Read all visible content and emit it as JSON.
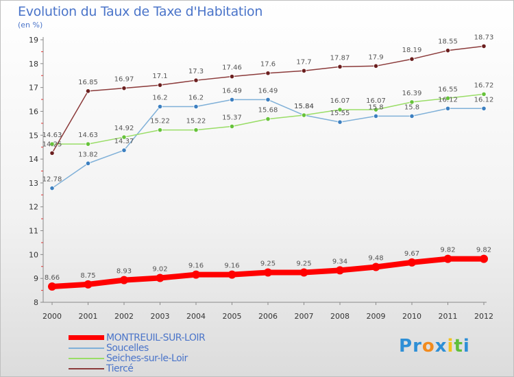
{
  "title": "Evolution du Taux de Taxe d'Habitation",
  "unit": "(en %)",
  "logo": {
    "text": "Proxiti",
    "letters": [
      {
        "ch": "P",
        "color": "#2e8fd6"
      },
      {
        "ch": "r",
        "color": "#2e8fd6"
      },
      {
        "ch": "o",
        "color": "#f28b1e"
      },
      {
        "ch": "x",
        "color": "#2e8fd6"
      },
      {
        "ch": "i",
        "color": "#f2c21e"
      },
      {
        "ch": "t",
        "color": "#5fbf3a"
      },
      {
        "ch": "i",
        "color": "#2e8fd6"
      }
    ]
  },
  "chart_data": {
    "type": "line",
    "title": "Evolution du Taux de Taxe d'Habitation",
    "ylabel": "(en %)",
    "xlabel": "",
    "x": [
      "2000",
      "2001",
      "2002",
      "2003",
      "2004",
      "2005",
      "2006",
      "2007",
      "2008",
      "2009",
      "2010",
      "2011",
      "2012"
    ],
    "ylim": [
      8,
      19
    ],
    "yticks": [
      8,
      9,
      10,
      11,
      12,
      13,
      14,
      15,
      16,
      17,
      18,
      19
    ],
    "grid": false,
    "legend": "bottom-left",
    "series": [
      {
        "name": "MONTREUIL-SUR-LOIR",
        "color": "#ff0000",
        "marker": "#ff0000",
        "width": 8,
        "values": [
          8.66,
          8.75,
          8.93,
          9.02,
          9.16,
          9.16,
          9.25,
          9.25,
          9.34,
          9.48,
          9.67,
          9.82,
          9.82
        ],
        "labels": [
          "8.66",
          "8.75",
          "8.93",
          "9.02",
          "9.16",
          "9.16",
          "9.25",
          "9.25",
          "9.34",
          "9.48",
          "9.67",
          "9.82",
          "9.82"
        ]
      },
      {
        "name": "Soucelles",
        "color": "#7fb0d8",
        "marker": "#3c7fc0",
        "width": 1.5,
        "values": [
          12.78,
          13.82,
          14.37,
          16.2,
          16.2,
          16.49,
          16.49,
          15.84,
          15.55,
          15.8,
          15.8,
          16.12,
          16.12
        ],
        "labels": [
          "12.78",
          "13.82",
          "14.37",
          "16.2",
          "16.2",
          "16.49",
          "16.49",
          "15.84",
          "15.55",
          "15.8",
          "15.8",
          "16.12",
          "16.12"
        ]
      },
      {
        "name": "Seiches-sur-le-Loir",
        "color": "#99dd66",
        "marker": "#66c23a",
        "width": 1.5,
        "values": [
          14.63,
          14.63,
          14.92,
          15.22,
          15.22,
          15.37,
          15.68,
          15.84,
          16.07,
          16.07,
          16.39,
          16.55,
          16.72
        ],
        "labels": [
          "14.63",
          "14.63",
          "14.92",
          "15.22",
          "15.22",
          "15.37",
          "15.68",
          "15.84",
          "16.07",
          "16.07",
          "16.39",
          "16.55",
          "16.72"
        ]
      },
      {
        "name": "Tiercé",
        "color": "#8b3a3a",
        "marker": "#6b1f1f",
        "width": 1.5,
        "values": [
          14.25,
          16.85,
          16.97,
          17.1,
          17.3,
          17.46,
          17.6,
          17.7,
          17.87,
          17.9,
          18.19,
          18.55,
          18.73
        ],
        "labels": [
          "14.25",
          "16.85",
          "16.97",
          "17.1",
          "17.3",
          "17.46",
          "17.6",
          "17.7",
          "17.87",
          "17.9",
          "18.19",
          "18.55",
          "18.73"
        ]
      }
    ]
  }
}
